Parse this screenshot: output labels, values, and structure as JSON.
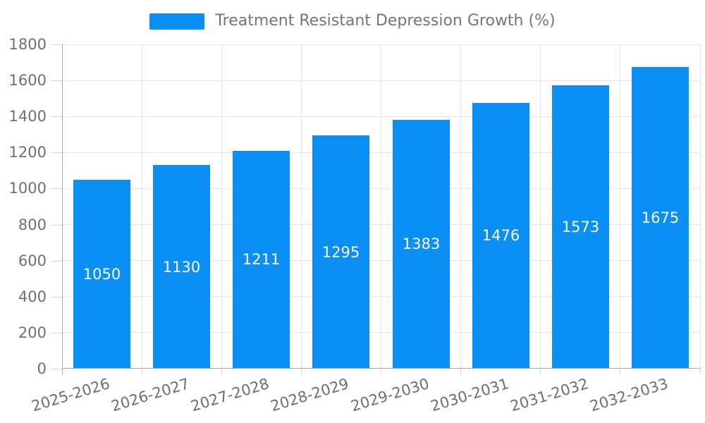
{
  "legend": {
    "label": "Treatment Resistant Depression Growth (%)"
  },
  "chart_data": {
    "type": "bar",
    "title": "Treatment Resistant Depression Growth (%)",
    "categories": [
      "2025-2026",
      "2026-2027",
      "2027-2028",
      "2028-2029",
      "2029-2030",
      "2030-2031",
      "2031-2032",
      "2032-2033"
    ],
    "values": [
      1050,
      1130,
      1211,
      1295,
      1383,
      1476,
      1573,
      1675
    ],
    "xlabel": "",
    "ylabel": "",
    "ylim": [
      0,
      1800
    ],
    "ytick_step": 200,
    "yticks": [
      0,
      200,
      400,
      600,
      800,
      1000,
      1200,
      1400,
      1600,
      1800
    ],
    "grid": true,
    "legend_position": "top-center",
    "value_labels": "centered-inside-bars",
    "x_label_rotation_deg": -17,
    "colors": {
      "bar": "#0A8FF5",
      "value_label": "#ffffff",
      "grid": "#e4e4e4",
      "axis_line": "#a8a8a8",
      "tick_mark": "#d6d6d6",
      "axis_text": "#6f6f6f",
      "legend_text": "#757575",
      "background": "#ffffff"
    }
  }
}
